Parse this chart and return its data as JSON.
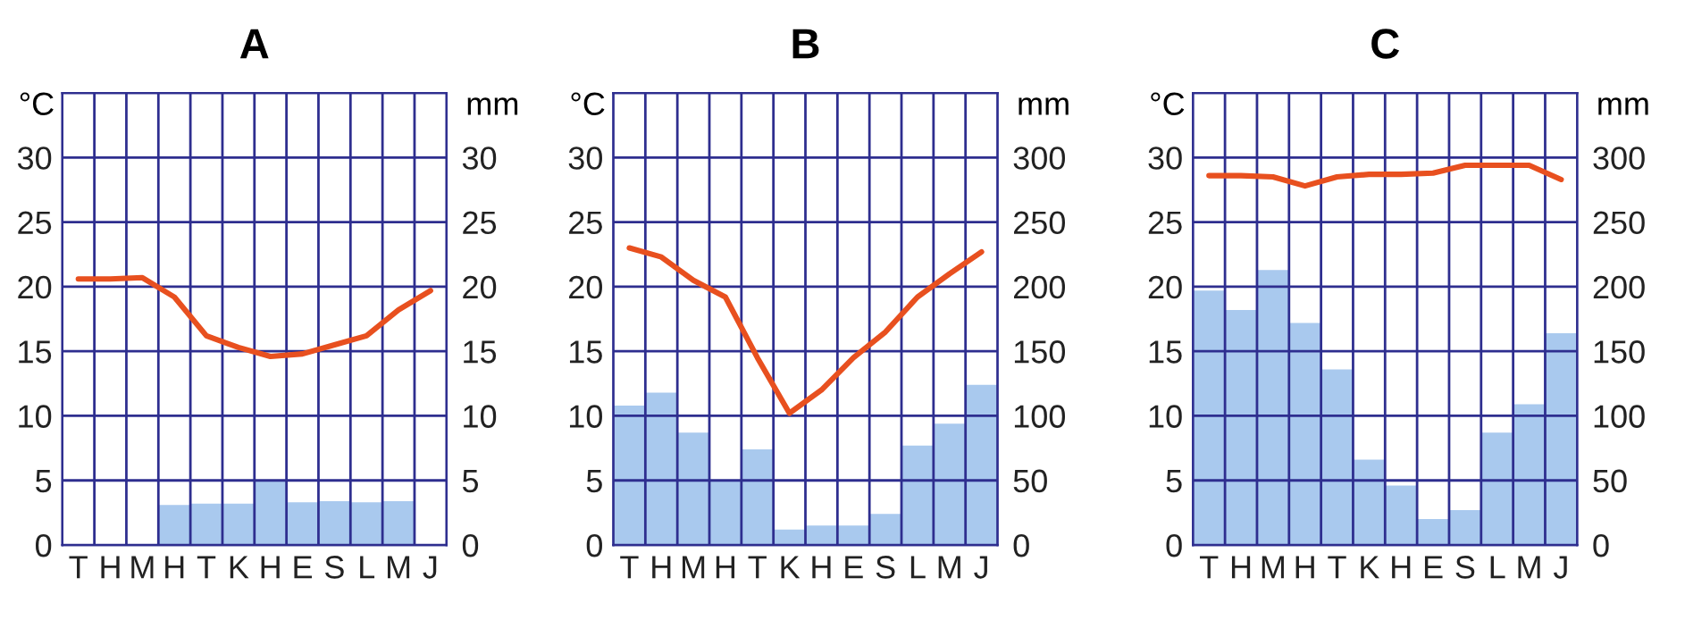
{
  "chart_data": [
    {
      "type": "bar",
      "title": "A",
      "categories": [
        "T",
        "H",
        "M",
        "H",
        "T",
        "K",
        "H",
        "E",
        "S",
        "L",
        "M",
        "J"
      ],
      "ylabel": "°C",
      "y2label": "mm",
      "ylim": [
        0,
        35
      ],
      "yticks": [
        0,
        5,
        10,
        15,
        20,
        25,
        30
      ],
      "y2lim": [
        0,
        35
      ],
      "y2ticks": [
        0,
        5,
        10,
        15,
        20,
        25,
        30
      ],
      "grid": true,
      "series": [
        {
          "axis": "y2",
          "color": "#a9c9ee",
          "values": [
            0,
            0,
            0,
            3.1,
            3.2,
            3.2,
            5,
            3.3,
            3.4,
            3.3,
            3.4,
            0
          ]
        },
        {
          "type": "line",
          "color": "#e8501f",
          "values": [
            20.6,
            20.6,
            20.7,
            19.2,
            16.2,
            15.3,
            14.6,
            14.8,
            15.5,
            16.2,
            18.2,
            19.7
          ]
        }
      ]
    },
    {
      "type": "bar",
      "title": "B",
      "categories": [
        "T",
        "H",
        "M",
        "H",
        "T",
        "K",
        "H",
        "E",
        "S",
        "L",
        "M",
        "J"
      ],
      "ylabel": "°C",
      "y2label": "mm",
      "ylim": [
        0,
        35
      ],
      "yticks": [
        0,
        5,
        10,
        15,
        20,
        25,
        30
      ],
      "y2lim": [
        0,
        350
      ],
      "y2ticks": [
        0,
        50,
        100,
        150,
        200,
        250,
        300
      ],
      "grid": true,
      "series": [
        {
          "axis": "y2",
          "color": "#a9c9ee",
          "values": [
            108,
            118,
            87,
            50,
            74,
            12,
            15,
            15,
            24,
            77,
            94,
            124
          ]
        },
        {
          "type": "line",
          "color": "#e8501f",
          "values": [
            23.0,
            22.3,
            20.5,
            19.2,
            14.5,
            10.2,
            12.0,
            14.5,
            16.5,
            19.2,
            21.0,
            22.7
          ]
        }
      ]
    },
    {
      "type": "bar",
      "title": "C",
      "categories": [
        "T",
        "H",
        "M",
        "H",
        "T",
        "K",
        "H",
        "E",
        "S",
        "L",
        "M",
        "J"
      ],
      "ylabel": "°C",
      "y2label": "mm",
      "ylim": [
        0,
        35
      ],
      "yticks": [
        0,
        5,
        10,
        15,
        20,
        25,
        30
      ],
      "y2lim": [
        0,
        350
      ],
      "y2ticks": [
        0,
        50,
        100,
        150,
        200,
        250,
        300
      ],
      "grid": true,
      "series": [
        {
          "axis": "y2",
          "color": "#a9c9ee",
          "values": [
            197,
            182,
            213,
            172,
            136,
            66,
            46,
            20,
            27,
            87,
            109,
            164
          ]
        },
        {
          "type": "line",
          "color": "#e8501f",
          "values": [
            28.6,
            28.6,
            28.5,
            27.8,
            28.5,
            28.7,
            28.7,
            28.8,
            29.4,
            29.4,
            29.4,
            28.3
          ]
        }
      ]
    }
  ]
}
